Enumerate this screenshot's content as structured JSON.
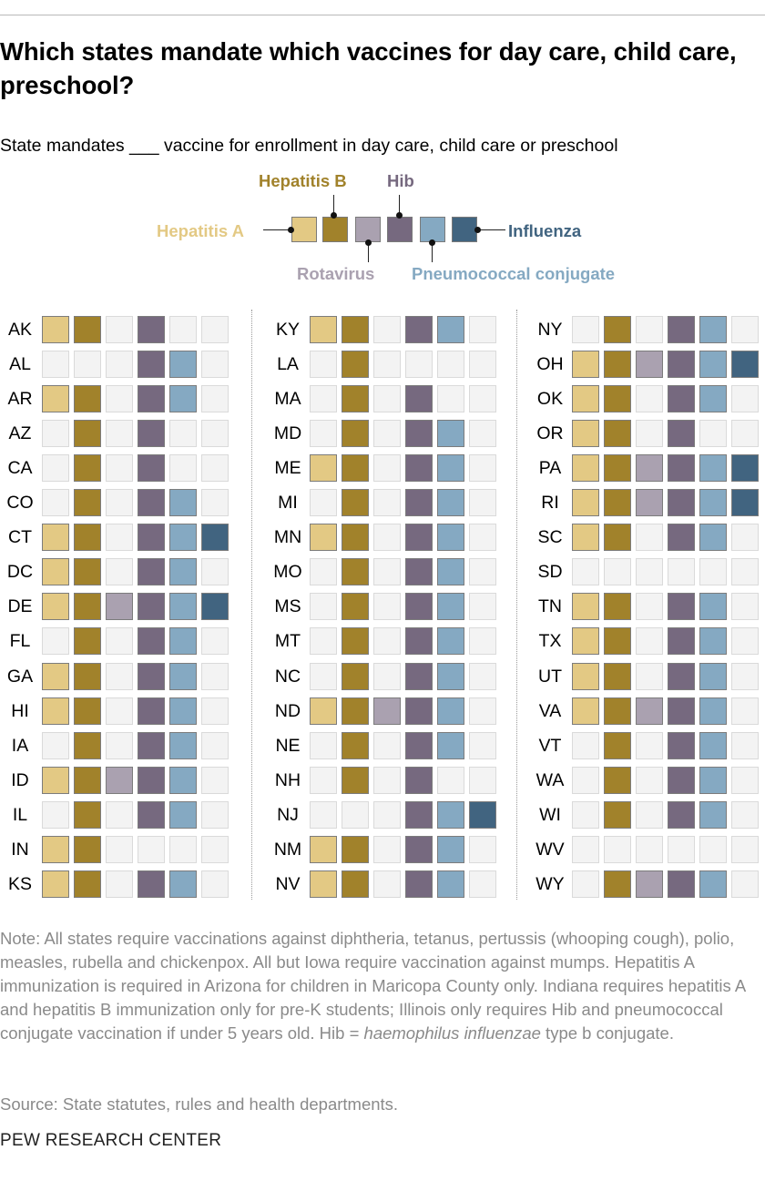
{
  "title": "Which states mandate which vaccines for day care, child care, preschool?",
  "subtitle": "State mandates ___ vaccine for enrollment in day care, child care or preschool",
  "note_parts": [
    "Note: All states require vaccinations against diphtheria, tetanus, pertussis (whooping cough), polio, measles, rubella and chickenpox. All but Iowa require vaccination against mumps. Hepatitis A immunization is required in Arizona for children in Maricopa County only. Indiana requires hepatitis A and hepatitis B immunization only for pre-K students; Illinois only requires Hib and pneumococcal conjugate vaccination if under 5 years old. Hib = ",
    "haemophilus influenzae",
    " type b conjugate."
  ],
  "source": "Source: State statutes, rules and health departments.",
  "footer": "PEW RESEARCH CENTER",
  "chart_data": {
    "type": "table",
    "vaccines": [
      "Hepatitis A",
      "Hepatitis B",
      "Rotavirus",
      "Hib",
      "Pneumococcal conjugate",
      "Influenza"
    ],
    "colors": {
      "Hepatitis A": "#e3c984",
      "Hepatitis B": "#a1822b",
      "Rotavirus": "#aaa1b0",
      "Hib": "#76697f",
      "Pneumococcal conjugate": "#85a9c2",
      "Influenza": "#416480",
      "none": "#f3f3f3"
    },
    "columns": [
      [
        {
          "state": "AK",
          "v": [
            1,
            1,
            0,
            1,
            0,
            0
          ]
        },
        {
          "state": "AL",
          "v": [
            0,
            0,
            0,
            1,
            1,
            0
          ]
        },
        {
          "state": "AR",
          "v": [
            1,
            1,
            0,
            1,
            1,
            0
          ]
        },
        {
          "state": "AZ",
          "v": [
            0,
            1,
            0,
            1,
            0,
            0
          ]
        },
        {
          "state": "CA",
          "v": [
            0,
            1,
            0,
            1,
            0,
            0
          ]
        },
        {
          "state": "CO",
          "v": [
            0,
            1,
            0,
            1,
            1,
            0
          ]
        },
        {
          "state": "CT",
          "v": [
            1,
            1,
            0,
            1,
            1,
            1
          ]
        },
        {
          "state": "DC",
          "v": [
            1,
            1,
            0,
            1,
            1,
            0
          ]
        },
        {
          "state": "DE",
          "v": [
            1,
            1,
            1,
            1,
            1,
            1
          ]
        },
        {
          "state": "FL",
          "v": [
            0,
            1,
            0,
            1,
            1,
            0
          ]
        },
        {
          "state": "GA",
          "v": [
            1,
            1,
            0,
            1,
            1,
            0
          ]
        },
        {
          "state": "HI",
          "v": [
            1,
            1,
            0,
            1,
            1,
            0
          ]
        },
        {
          "state": "IA",
          "v": [
            0,
            1,
            0,
            1,
            1,
            0
          ]
        },
        {
          "state": "ID",
          "v": [
            1,
            1,
            1,
            1,
            1,
            0
          ]
        },
        {
          "state": "IL",
          "v": [
            0,
            1,
            0,
            1,
            1,
            0
          ]
        },
        {
          "state": "IN",
          "v": [
            1,
            1,
            0,
            0,
            0,
            0
          ]
        },
        {
          "state": "KS",
          "v": [
            1,
            1,
            0,
            1,
            1,
            0
          ]
        }
      ],
      [
        {
          "state": "KY",
          "v": [
            1,
            1,
            0,
            1,
            1,
            0
          ]
        },
        {
          "state": "LA",
          "v": [
            0,
            1,
            0,
            0,
            0,
            0
          ]
        },
        {
          "state": "MA",
          "v": [
            0,
            1,
            0,
            1,
            0,
            0
          ]
        },
        {
          "state": "MD",
          "v": [
            0,
            1,
            0,
            1,
            1,
            0
          ]
        },
        {
          "state": "ME",
          "v": [
            1,
            1,
            0,
            1,
            1,
            0
          ]
        },
        {
          "state": "MI",
          "v": [
            0,
            1,
            0,
            1,
            1,
            0
          ]
        },
        {
          "state": "MN",
          "v": [
            1,
            1,
            0,
            1,
            1,
            0
          ]
        },
        {
          "state": "MO",
          "v": [
            0,
            1,
            0,
            1,
            1,
            0
          ]
        },
        {
          "state": "MS",
          "v": [
            0,
            1,
            0,
            1,
            1,
            0
          ]
        },
        {
          "state": "MT",
          "v": [
            0,
            1,
            0,
            1,
            1,
            0
          ]
        },
        {
          "state": "NC",
          "v": [
            0,
            1,
            0,
            1,
            1,
            0
          ]
        },
        {
          "state": "ND",
          "v": [
            1,
            1,
            1,
            1,
            1,
            0
          ]
        },
        {
          "state": "NE",
          "v": [
            0,
            1,
            0,
            1,
            1,
            0
          ]
        },
        {
          "state": "NH",
          "v": [
            0,
            1,
            0,
            1,
            0,
            0
          ]
        },
        {
          "state": "NJ",
          "v": [
            0,
            0,
            0,
            1,
            1,
            1
          ]
        },
        {
          "state": "NM",
          "v": [
            1,
            1,
            0,
            1,
            1,
            0
          ]
        },
        {
          "state": "NV",
          "v": [
            1,
            1,
            0,
            1,
            1,
            0
          ]
        }
      ],
      [
        {
          "state": "NY",
          "v": [
            0,
            1,
            0,
            1,
            1,
            0
          ]
        },
        {
          "state": "OH",
          "v": [
            1,
            1,
            1,
            1,
            1,
            1
          ]
        },
        {
          "state": "OK",
          "v": [
            1,
            1,
            0,
            1,
            1,
            0
          ]
        },
        {
          "state": "OR",
          "v": [
            1,
            1,
            0,
            1,
            0,
            0
          ]
        },
        {
          "state": "PA",
          "v": [
            1,
            1,
            1,
            1,
            1,
            1
          ]
        },
        {
          "state": "RI",
          "v": [
            1,
            1,
            1,
            1,
            1,
            1
          ]
        },
        {
          "state": "SC",
          "v": [
            1,
            1,
            0,
            1,
            1,
            0
          ]
        },
        {
          "state": "SD",
          "v": [
            0,
            0,
            0,
            0,
            0,
            0
          ]
        },
        {
          "state": "TN",
          "v": [
            1,
            1,
            0,
            1,
            1,
            0
          ]
        },
        {
          "state": "TX",
          "v": [
            1,
            1,
            0,
            1,
            1,
            0
          ]
        },
        {
          "state": "UT",
          "v": [
            1,
            1,
            0,
            1,
            1,
            0
          ]
        },
        {
          "state": "VA",
          "v": [
            1,
            1,
            1,
            1,
            1,
            0
          ]
        },
        {
          "state": "VT",
          "v": [
            0,
            1,
            0,
            1,
            1,
            0
          ]
        },
        {
          "state": "WA",
          "v": [
            0,
            1,
            0,
            1,
            1,
            0
          ]
        },
        {
          "state": "WI",
          "v": [
            0,
            1,
            0,
            1,
            1,
            0
          ]
        },
        {
          "state": "WV",
          "v": [
            0,
            0,
            0,
            0,
            0,
            0
          ]
        },
        {
          "state": "WY",
          "v": [
            0,
            1,
            1,
            1,
            1,
            0
          ]
        }
      ]
    ]
  }
}
